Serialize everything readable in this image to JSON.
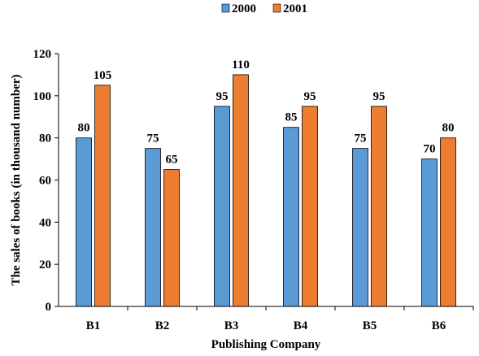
{
  "chart_data": {
    "type": "bar",
    "categories": [
      "B1",
      "B2",
      "B3",
      "B4",
      "B5",
      "B6"
    ],
    "series": [
      {
        "name": "2000",
        "values": [
          80,
          75,
          95,
          85,
          75,
          70
        ],
        "color": "#5b9bd5"
      },
      {
        "name": "2001",
        "values": [
          105,
          65,
          110,
          95,
          95,
          80
        ],
        "color": "#ed7d31"
      }
    ],
    "title": "",
    "xlabel": "Publishing Company",
    "ylabel": "The sales of books (in thousand number)",
    "ylim": [
      0,
      120
    ],
    "yticks": [
      0,
      20,
      40,
      60,
      80,
      100,
      120
    ],
    "grid": false,
    "legend_position": "top"
  }
}
